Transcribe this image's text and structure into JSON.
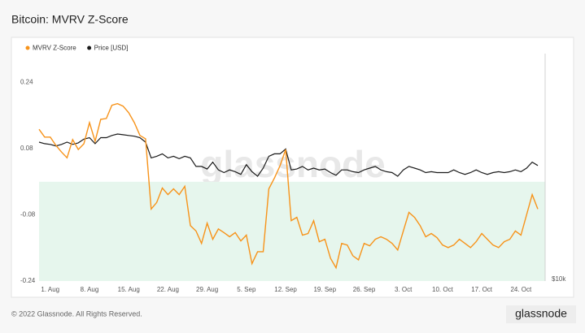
{
  "chart_data": {
    "type": "line",
    "title": "Bitcoin: MVRV Z-Score",
    "watermark": "glassnode",
    "footer": "© 2022 Glassnode. All Rights Reserved.",
    "logo": "glassnode",
    "categories": [
      null,
      null,
      "1. Aug",
      null,
      null,
      null,
      null,
      null,
      null,
      "8. Aug",
      null,
      null,
      null,
      null,
      null,
      null,
      "15. Aug",
      null,
      null,
      null,
      null,
      null,
      null,
      "22. Aug",
      null,
      null,
      null,
      null,
      null,
      null,
      "29. Aug",
      null,
      null,
      null,
      null,
      null,
      null,
      "5. Sep",
      null,
      null,
      null,
      null,
      null,
      null,
      "12. Sep",
      null,
      null,
      null,
      null,
      null,
      null,
      "19. Sep",
      null,
      null,
      null,
      null,
      null,
      null,
      "26. Sep",
      null,
      null,
      null,
      null,
      null,
      null,
      "3. Oct",
      null,
      null,
      null,
      null,
      null,
      null,
      "10. Oct",
      null,
      null,
      null,
      null,
      null,
      null,
      "17. Oct",
      null,
      null,
      null,
      null,
      null,
      null,
      "24. Oct",
      null,
      null,
      null
    ],
    "series": [
      {
        "name": "MVRV Z-Score",
        "color": "#f7931a",
        "values": [
          0.127,
          0.108,
          0.108,
          0.088,
          0.072,
          0.058,
          0.102,
          0.078,
          0.092,
          0.143,
          0.098,
          0.151,
          0.153,
          0.185,
          0.189,
          0.183,
          0.167,
          0.143,
          0.112,
          0.104,
          -0.066,
          -0.05,
          -0.015,
          -0.031,
          -0.017,
          -0.031,
          -0.011,
          -0.106,
          -0.119,
          -0.149,
          -0.1,
          -0.139,
          -0.114,
          -0.123,
          -0.133,
          -0.123,
          -0.143,
          -0.129,
          -0.198,
          -0.169,
          -0.169,
          -0.017,
          0.009,
          0.039,
          0.078,
          -0.094,
          -0.086,
          -0.129,
          -0.125,
          -0.094,
          -0.145,
          -0.139,
          -0.185,
          -0.208,
          -0.149,
          -0.153,
          -0.179,
          -0.189,
          -0.149,
          -0.155,
          -0.139,
          -0.133,
          -0.139,
          -0.149,
          -0.165,
          -0.119,
          -0.074,
          -0.086,
          -0.106,
          -0.133,
          -0.125,
          -0.135,
          -0.153,
          -0.159,
          -0.153,
          -0.139,
          -0.149,
          -0.159,
          -0.145,
          -0.125,
          -0.139,
          -0.153,
          -0.159,
          -0.145,
          -0.139,
          -0.119,
          -0.129,
          -0.08,
          -0.031,
          -0.066
        ]
      },
      {
        "name": "Price [USD]",
        "color": "#1a1a1a",
        "axis": "y2",
        "values": [
          22600,
          22400,
          22300,
          22100,
          22300,
          22600,
          22300,
          22500,
          23000,
          23200,
          22400,
          23200,
          23200,
          23500,
          23700,
          23600,
          23500,
          23400,
          23200,
          22600,
          20600,
          20800,
          21100,
          20600,
          20800,
          20500,
          20800,
          20600,
          19600,
          19600,
          19300,
          20100,
          19200,
          18900,
          19200,
          19000,
          18700,
          19800,
          19000,
          18500,
          19400,
          20800,
          21100,
          21100,
          21700,
          19200,
          19300,
          19600,
          19200,
          19400,
          19200,
          19300,
          18900,
          18600,
          19200,
          19200,
          19000,
          18900,
          19200,
          19400,
          19600,
          19200,
          19000,
          18900,
          18500,
          19200,
          19600,
          19400,
          19200,
          18900,
          19000,
          18900,
          18900,
          18900,
          19200,
          18900,
          18700,
          18900,
          19200,
          18900,
          18700,
          18900,
          19000,
          18900,
          19000,
          19200,
          19000,
          19400,
          20100,
          19700
        ]
      }
    ],
    "ylim": [
      -0.24,
      0.31
    ],
    "yticks": [
      -0.24,
      -0.08,
      0.08,
      0.24
    ],
    "y2lim": [
      10000,
      38000
    ],
    "y2ticks": [
      {
        "value": 10000,
        "label": "$10k"
      }
    ],
    "y2_log": true,
    "grid": false,
    "negative_fill": "#e6f6ed"
  }
}
